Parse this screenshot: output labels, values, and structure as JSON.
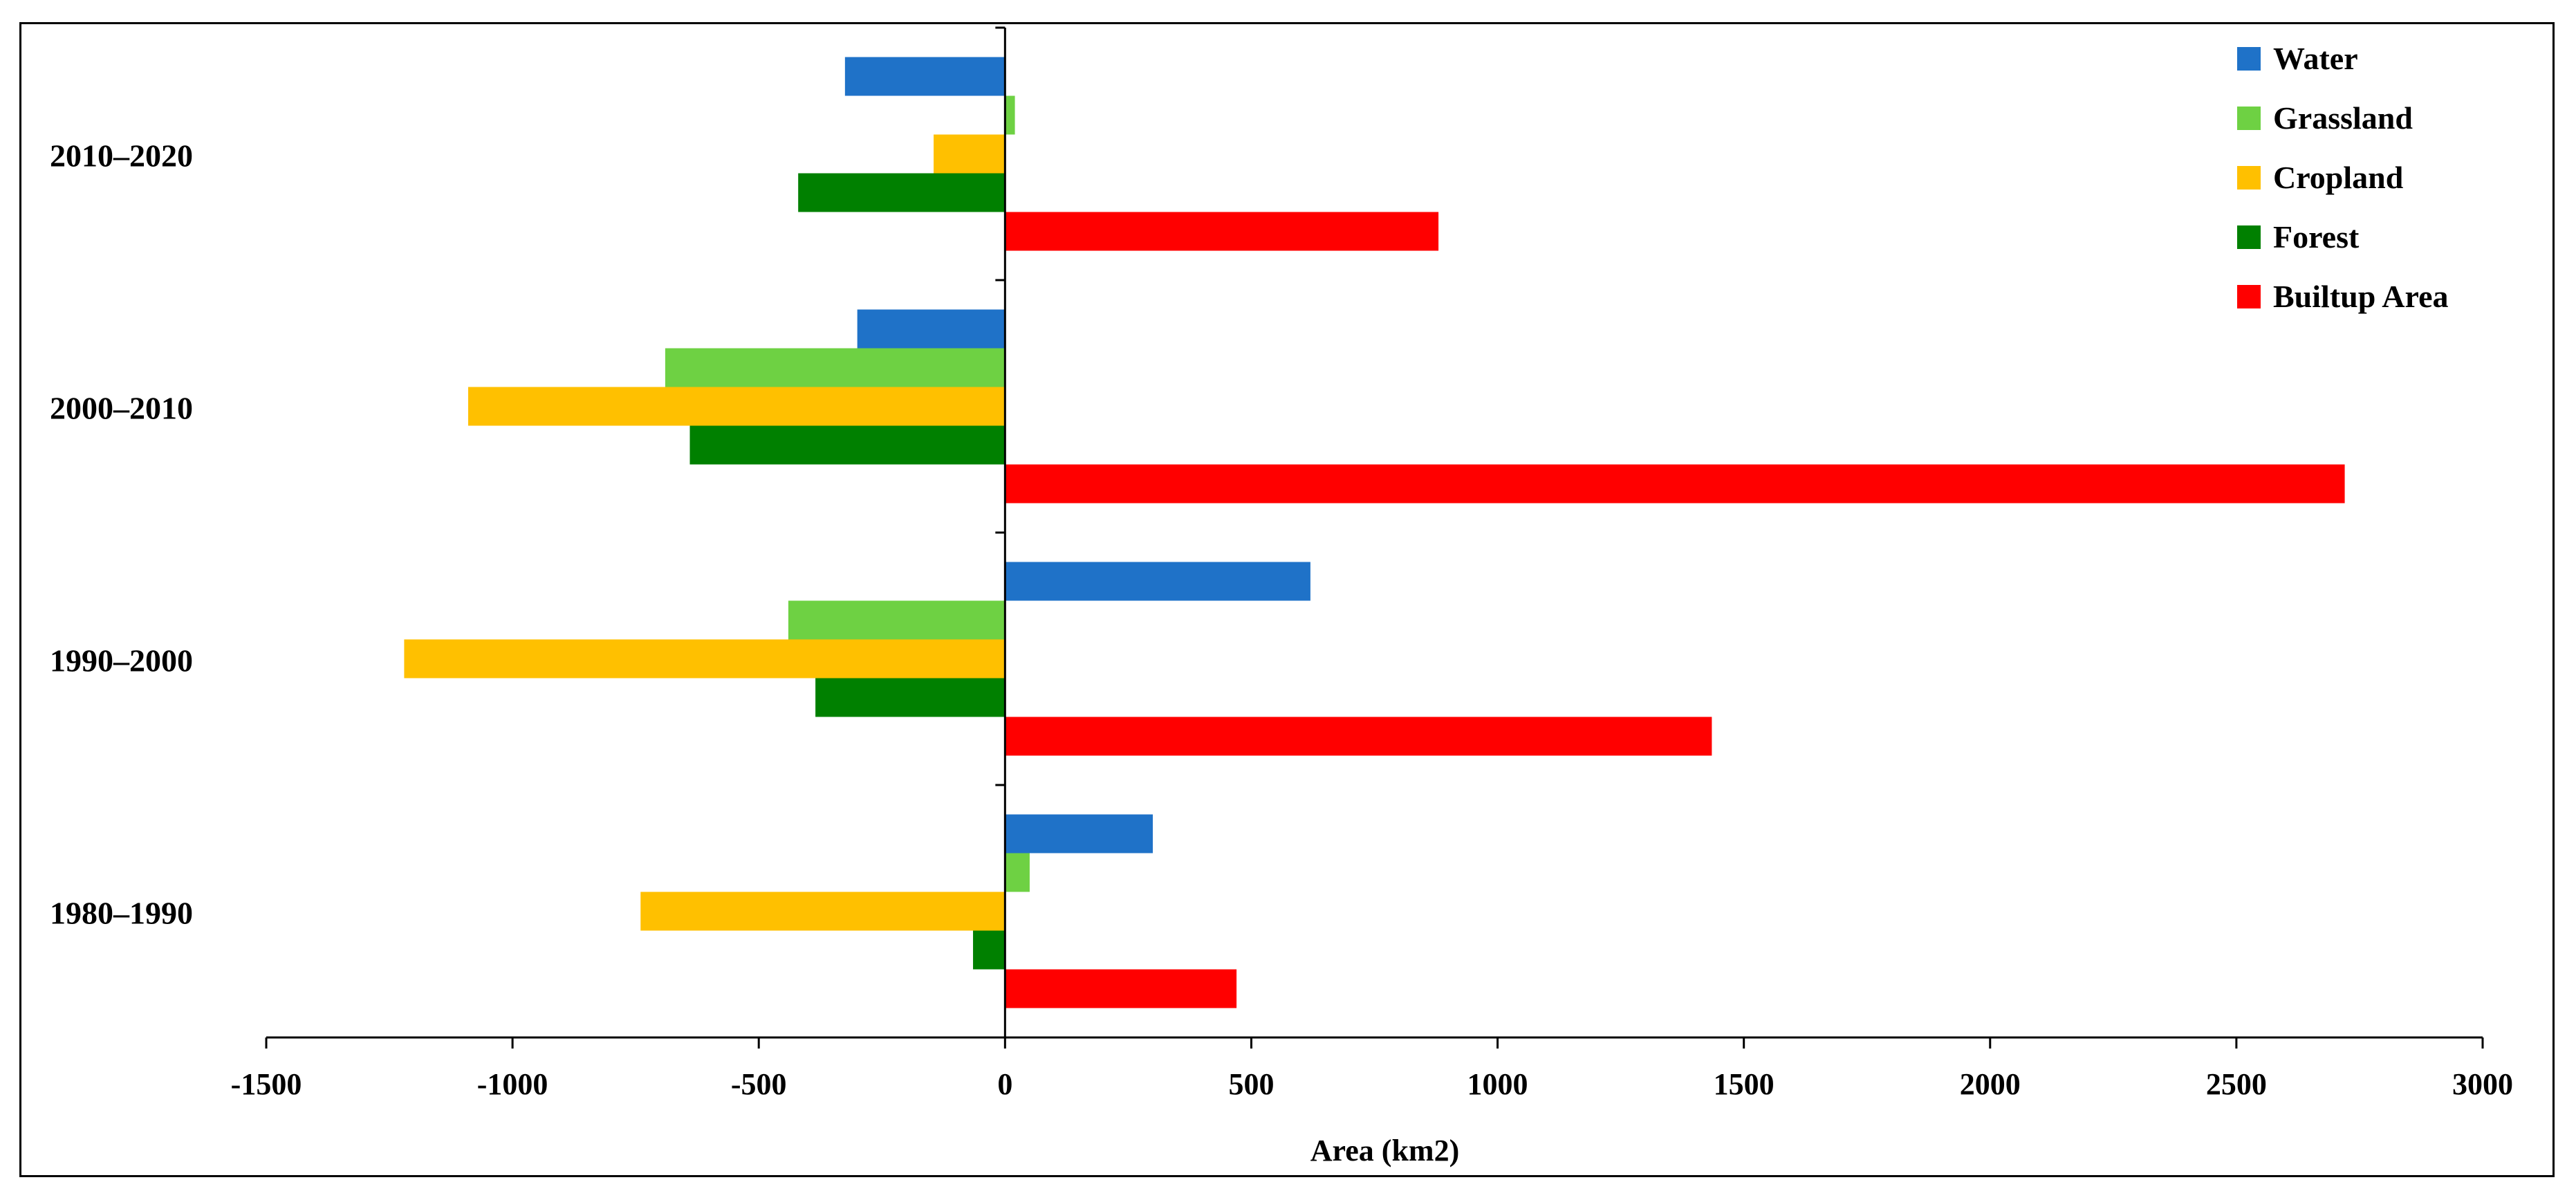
{
  "chart_data": {
    "type": "bar",
    "orientation": "horizontal",
    "xlabel": "Area (km2)",
    "ylabel": "",
    "xlim": [
      -1500,
      3000
    ],
    "x_ticks": [
      -1500,
      -1000,
      -500,
      0,
      500,
      1000,
      1500,
      2000,
      2500,
      3000
    ],
    "x_tick_labels": [
      "-1500",
      "-1000",
      "-500",
      "0",
      "500",
      "1000",
      "1500",
      "2000",
      "2500",
      "3000"
    ],
    "categories": [
      "2010–2020",
      "2000–2010",
      "1990–2000",
      "1980–1990"
    ],
    "series": [
      {
        "name": "Water",
        "color": "#1F72C8",
        "values": [
          -325,
          -300,
          620,
          300
        ]
      },
      {
        "name": "Grassland",
        "color": "#6ED143",
        "values": [
          20,
          -690,
          -440,
          50
        ]
      },
      {
        "name": "Cropland",
        "color": "#FFC000",
        "values": [
          -145,
          -1090,
          -1220,
          -740
        ]
      },
      {
        "name": "Forest",
        "color": "#008000",
        "values": [
          -420,
          -640,
          -385,
          -65
        ]
      },
      {
        "name": "Builtup Area",
        "color": "#FF0000",
        "values": [
          880,
          2720,
          1435,
          470
        ]
      }
    ],
    "legend_position": "top-right",
    "grid": false
  }
}
